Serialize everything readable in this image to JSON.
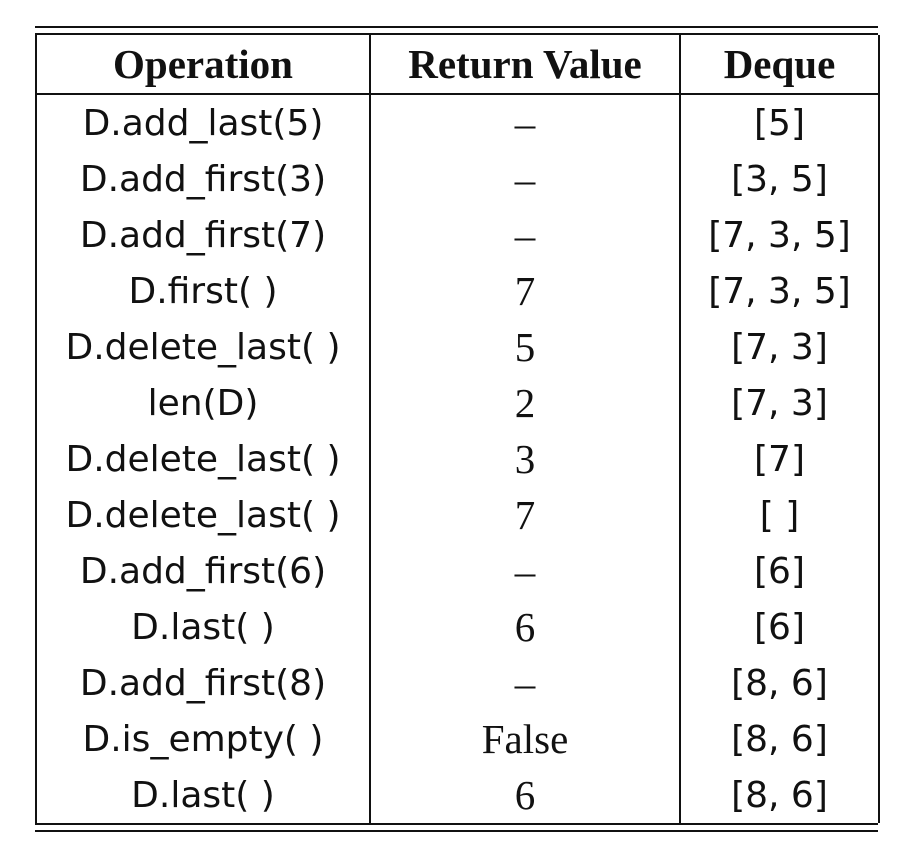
{
  "table": {
    "headers": [
      "Operation",
      "Return Value",
      "Deque"
    ],
    "rows": [
      {
        "operation": "D.add_last(5)",
        "return_value": "–",
        "deque": "[5]"
      },
      {
        "operation": "D.add_first(3)",
        "return_value": "–",
        "deque": "[3, 5]"
      },
      {
        "operation": "D.add_first(7)",
        "return_value": "–",
        "deque": "[7, 3, 5]"
      },
      {
        "operation": "D.first( )",
        "return_value": "7",
        "deque": "[7, 3, 5]"
      },
      {
        "operation": "D.delete_last( )",
        "return_value": "5",
        "deque": "[7, 3]"
      },
      {
        "operation": "len(D)",
        "return_value": "2",
        "deque": "[7, 3]"
      },
      {
        "operation": "D.delete_last( )",
        "return_value": "3",
        "deque": "[7]"
      },
      {
        "operation": "D.delete_last( )",
        "return_value": "7",
        "deque": "[ ]"
      },
      {
        "operation": "D.add_first(6)",
        "return_value": "–",
        "deque": "[6]"
      },
      {
        "operation": "D.last( )",
        "return_value": "6",
        "deque": "[6]"
      },
      {
        "operation": "D.add_first(8)",
        "return_value": "–",
        "deque": "[8, 6]"
      },
      {
        "operation": "D.is_empty( )",
        "return_value": "False",
        "deque": "[8, 6]"
      },
      {
        "operation": "D.last( )",
        "return_value": "6",
        "deque": "[8, 6]"
      }
    ]
  }
}
